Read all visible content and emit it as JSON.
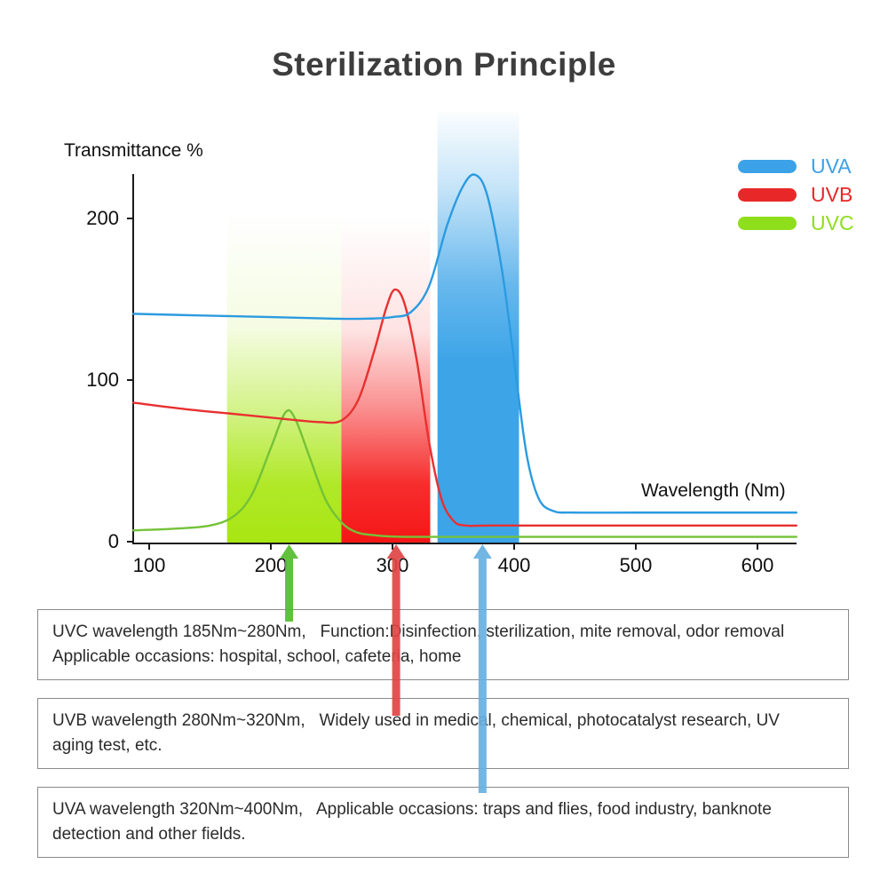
{
  "page": {
    "title": "Sterilization Principle"
  },
  "chart_data": {
    "type": "line",
    "title": "Sterilization Principle",
    "ylabel": "Transmittance %",
    "xlabel": "Wavelength (Nm)",
    "x_ticks": [
      "100",
      "200",
      "300",
      "400",
      "500",
      "600"
    ],
    "y_ticks": [
      "0",
      "100",
      "200"
    ],
    "xlim": [
      87,
      632
    ],
    "ylim": [
      0,
      235
    ],
    "grid": false,
    "legend_position": "top-right",
    "legend": [
      {
        "label": "UVA",
        "color": "#3BA2E8"
      },
      {
        "label": "UVB",
        "color": "#E82828"
      },
      {
        "label": "UVC",
        "color": "#8FDE1C"
      }
    ],
    "series": [
      {
        "name": "UVA",
        "color": "#2B9BE0",
        "points": [
          [
            87,
            141
          ],
          [
            140,
            140
          ],
          [
            200,
            139
          ],
          [
            250,
            138
          ],
          [
            280,
            138
          ],
          [
            300,
            139
          ],
          [
            315,
            142
          ],
          [
            330,
            158
          ],
          [
            345,
            196
          ],
          [
            358,
            220
          ],
          [
            368,
            227
          ],
          [
            378,
            214
          ],
          [
            390,
            168
          ],
          [
            400,
            112
          ],
          [
            410,
            55
          ],
          [
            420,
            27
          ],
          [
            432,
            19
          ],
          [
            450,
            18
          ],
          [
            500,
            18
          ],
          [
            560,
            18
          ],
          [
            632,
            18
          ]
        ]
      },
      {
        "name": "UVB",
        "color": "#E83030",
        "points": [
          [
            87,
            86
          ],
          [
            130,
            82
          ],
          [
            170,
            79
          ],
          [
            210,
            76
          ],
          [
            240,
            74
          ],
          [
            258,
            75
          ],
          [
            272,
            88
          ],
          [
            285,
            118
          ],
          [
            295,
            145
          ],
          [
            302,
            156
          ],
          [
            310,
            147
          ],
          [
            320,
            112
          ],
          [
            330,
            62
          ],
          [
            340,
            27
          ],
          [
            350,
            13
          ],
          [
            360,
            10
          ],
          [
            380,
            10
          ],
          [
            450,
            10
          ],
          [
            550,
            10
          ],
          [
            632,
            10
          ]
        ]
      },
      {
        "name": "UVC",
        "color": "#74C238",
        "points": [
          [
            87,
            7
          ],
          [
            120,
            8
          ],
          [
            150,
            10
          ],
          [
            170,
            16
          ],
          [
            185,
            30
          ],
          [
            200,
            58
          ],
          [
            212,
            80
          ],
          [
            220,
            76
          ],
          [
            232,
            52
          ],
          [
            245,
            26
          ],
          [
            258,
            12
          ],
          [
            270,
            6
          ],
          [
            285,
            4
          ],
          [
            310,
            3
          ],
          [
            400,
            3
          ],
          [
            500,
            3
          ],
          [
            632,
            3
          ]
        ]
      }
    ],
    "bands": [
      {
        "name": "uvc-band",
        "x1": 164,
        "x2": 258,
        "color": "#A8E612"
      },
      {
        "name": "uvb-band",
        "x1": 258,
        "x2": 331,
        "color": "#F51616"
      },
      {
        "name": "uva-band",
        "x1": 337,
        "x2": 404,
        "color": "#3DA4E8"
      }
    ],
    "arrows": [
      {
        "name": "uvc-arrow",
        "nm": 215,
        "color": "#53BC2C"
      },
      {
        "name": "uvb-arrow",
        "nm": 303,
        "color": "#E04545"
      },
      {
        "name": "uva-arrow",
        "nm": 374,
        "color": "#66B0E2"
      }
    ]
  },
  "info_boxes": [
    {
      "id": "uvc",
      "line1": "UVC wavelength 185Nm~280Nm,   Function:Disinfection, sterilization, mite removal, odor removal",
      "line2": "Applicable occasions: hospital, school, cafeteria, home"
    },
    {
      "id": "uvb",
      "line1": "UVB wavelength 280Nm~320Nm,   Widely used in medical, chemical, photocatalyst research, UV",
      "line2": "aging test, etc."
    },
    {
      "id": "uva",
      "line1": "UVA wavelength 320Nm~400Nm,   Applicable occasions: traps and flies, food industry, banknote",
      "line2": "detection and other fields."
    }
  ]
}
